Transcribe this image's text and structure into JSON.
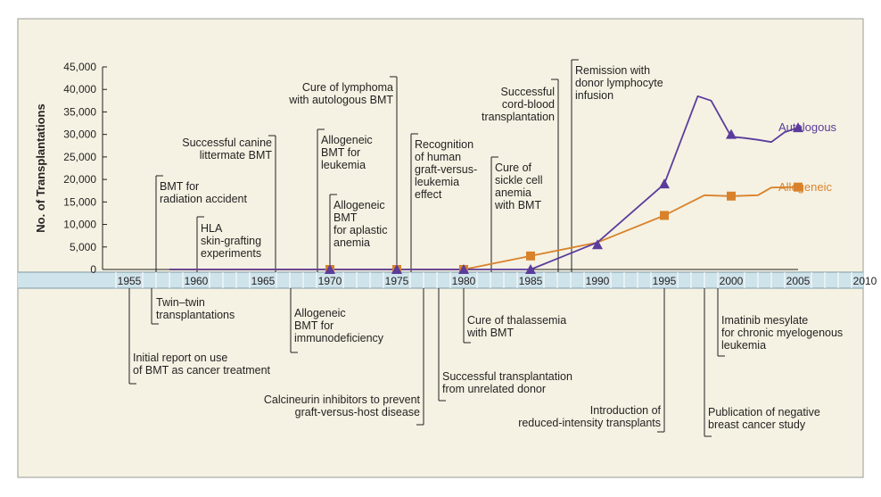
{
  "chart_data": {
    "type": "line",
    "ylabel": "No. of Transplantations",
    "yticks": [
      "0",
      "5,000",
      "10,000",
      "15,000",
      "20,000",
      "25,000",
      "30,000",
      "35,000",
      "40,000",
      "45,000"
    ],
    "ylim": [
      0,
      45000
    ],
    "xticks": [
      "1955",
      "1960",
      "1965",
      "1970",
      "1975",
      "1980",
      "1985",
      "1990",
      "1995",
      "2000",
      "2005",
      "2010"
    ],
    "xlim": [
      1954,
      2012
    ],
    "grid": false,
    "legend": "inline labels at line ends",
    "series": [
      {
        "name": "Autologous",
        "color": "#5b3c9c",
        "marker": "triangle",
        "points": [
          [
            1958,
            0
          ],
          [
            1970,
            0
          ],
          [
            1975,
            0
          ],
          [
            1980,
            0
          ],
          [
            1985,
            0
          ],
          [
            1990,
            6000
          ],
          [
            1995,
            19000
          ],
          [
            1997.5,
            38500
          ],
          [
            1998.5,
            37500
          ],
          [
            2000,
            29500
          ],
          [
            2001,
            29200
          ],
          [
            2002,
            28800
          ],
          [
            2003,
            28300
          ],
          [
            2004,
            30500
          ],
          [
            2005,
            31500
          ]
        ],
        "markers": [
          [
            1970,
            0
          ],
          [
            1975,
            0
          ],
          [
            1980,
            0
          ],
          [
            1985,
            0
          ],
          [
            1990,
            5500
          ],
          [
            1995,
            19000
          ],
          [
            2000,
            30000
          ],
          [
            2005,
            31500
          ]
        ]
      },
      {
        "name": "Allogeneic",
        "color": "#d9822b",
        "marker": "square",
        "points": [
          [
            1958,
            0
          ],
          [
            1970,
            0
          ],
          [
            1975,
            0
          ],
          [
            1980,
            0
          ],
          [
            1985,
            3000
          ],
          [
            1990,
            6000
          ],
          [
            1995,
            12000
          ],
          [
            1998,
            16500
          ],
          [
            2000,
            16300
          ],
          [
            2002,
            16500
          ],
          [
            2003,
            18200
          ],
          [
            2005,
            18300
          ]
        ],
        "markers": [
          [
            1970,
            0
          ],
          [
            1975,
            0
          ],
          [
            1980,
            0
          ],
          [
            1985,
            3000
          ],
          [
            1995,
            12000
          ],
          [
            2000,
            16300
          ],
          [
            2005,
            18300
          ]
        ]
      }
    ],
    "annotations_above": [
      {
        "lines": [
          "BMT for",
          "radiation accident"
        ],
        "year": 1959,
        "align": "start"
      },
      {
        "lines": [
          "HLA",
          "skin-grafting",
          "experiments"
        ],
        "year": 1961,
        "align": "start"
      },
      {
        "lines": [
          "Successful canine",
          "littermate BMT"
        ],
        "year": 1968.2,
        "align": "end"
      },
      {
        "lines": [
          "Cure of lymphoma",
          "with autologous BMT"
        ],
        "year": 1977,
        "align": "end"
      },
      {
        "lines": [
          "Allogeneic",
          "BMT for",
          "leukemia"
        ],
        "year": 1971.2,
        "align": "start"
      },
      {
        "lines": [
          "Allogeneic",
          "BMT",
          "for aplastic",
          "anemia"
        ],
        "year": 1972.2,
        "align": "start"
      },
      {
        "lines": [
          "Recognition",
          "of human",
          "graft-versus-",
          "leukemia",
          "effect"
        ],
        "year": 1978.2,
        "align": "start"
      },
      {
        "lines": [
          "Successful",
          "cord-blood",
          "transplantation"
        ],
        "year": 1989,
        "align": "end"
      },
      {
        "lines": [
          "Cure of",
          "sickle cell",
          "anemia",
          "with BMT"
        ],
        "year": 1984.2,
        "align": "start"
      },
      {
        "lines": [
          "Remission with",
          "donor lymphocyte",
          "infusion"
        ],
        "year": 1990,
        "align": "start"
      }
    ],
    "annotations_below": [
      {
        "lines": [
          "Twin–twin",
          "transplantations"
        ],
        "year": 1959,
        "align": "start"
      },
      {
        "lines": [
          "Initial report on use",
          "of BMT as cancer treatment"
        ],
        "year": 1957,
        "align": "start"
      },
      {
        "lines": [
          "Allogeneic",
          "BMT for",
          "immunodeficiency"
        ],
        "year": 1968.9,
        "align": "start"
      },
      {
        "lines": [
          "Calcineurin inhibitors to prevent",
          "graft-versus-host disease"
        ],
        "year": 1978.9,
        "align": "end"
      },
      {
        "lines": [
          "Cure of thalassemia",
          "with BMT"
        ],
        "year": 1982.3,
        "align": "start"
      },
      {
        "lines": [
          "Successful transplantation",
          "from unrelated donor"
        ],
        "year": 1980.2,
        "align": "start"
      },
      {
        "lines": [
          "Introduction of",
          "reduced-intensity transplants"
        ],
        "year": 1997,
        "align": "end"
      },
      {
        "lines": [
          "Imatinib mesylate",
          "for chronic myelogenous",
          "leukemia"
        ],
        "year": 2001,
        "align": "start"
      },
      {
        "lines": [
          "Publication of negative",
          "breast cancer study"
        ],
        "year": 1999.9,
        "align": "start"
      }
    ]
  }
}
